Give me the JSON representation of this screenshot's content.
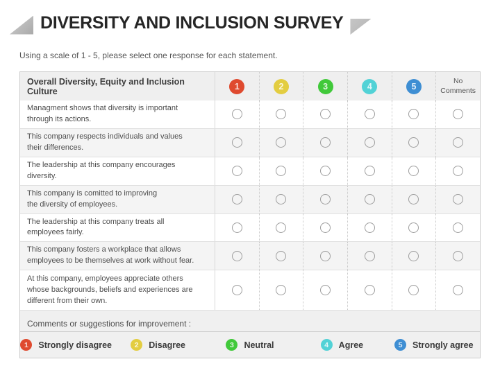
{
  "header": {
    "title": "DIVERSITY AND INCLUSION SURVEY"
  },
  "instruction": "Using a scale of 1 - 5, please select one response for each statement.",
  "table": {
    "header_label": "Overall Diversity, Equity and Inclusion Culture",
    "no_comments_label": "No\nComments",
    "scale": [
      {
        "value": "1",
        "label": "Strongly disagree",
        "color": "#df4a2f"
      },
      {
        "value": "2",
        "label": "Disagree",
        "color": "#e3cd41"
      },
      {
        "value": "3",
        "label": "Neutral",
        "color": "#41c93a"
      },
      {
        "value": "4",
        "label": "Agree",
        "color": "#52d2d6"
      },
      {
        "value": "5",
        "label": "Strongly agree",
        "color": "#3e8ed3"
      }
    ],
    "rows": [
      {
        "statement": "Managment shows that diversity is important\nthrough its actions."
      },
      {
        "statement": "This company respects individuals and values\ntheir differences."
      },
      {
        "statement": "The leadership at this company encourages\ndiversity."
      },
      {
        "statement": "This company is comitted to improving\nthe diversity of employees."
      },
      {
        "statement": "The leadership at this company treats all\nemployees fairly."
      },
      {
        "statement": "This company fosters a workplace that allows\nemployees to be themselves at work without fear."
      },
      {
        "statement": "At this company, employees appreciate others\nwhose backgrounds, beliefs and experiences are\ndifferent from their own."
      }
    ],
    "comments_label": "Comments or suggestions for improvement :"
  },
  "colors": {
    "triangle": "#b5b5b5",
    "header_bg": "#efefef",
    "alt_row_bg": "#f4f4f4",
    "legend_bg": "#f0f0f0"
  }
}
